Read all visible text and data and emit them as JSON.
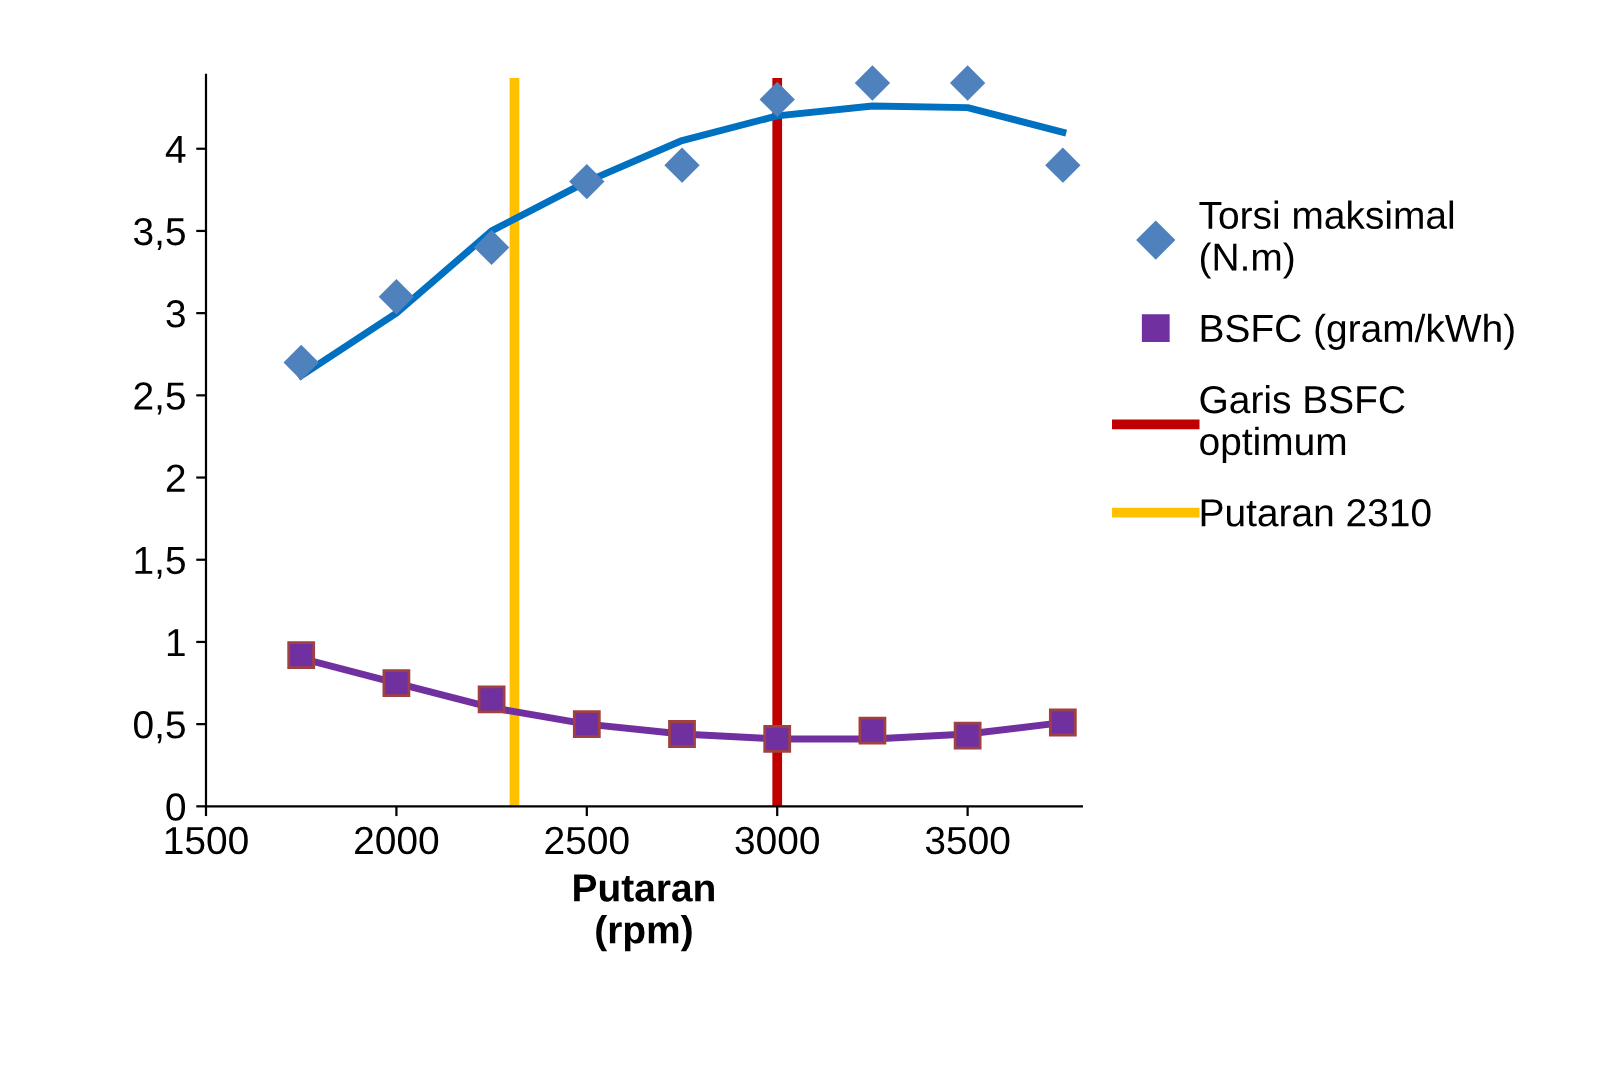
{
  "chart_data": {
    "type": "scatter",
    "xlabel": "Putaran\n(rpm)",
    "xlim": [
      1500,
      3800
    ],
    "xticks": [
      1500,
      2000,
      2500,
      3000,
      3500
    ],
    "ylim": [
      0,
      4.45
    ],
    "yticks": [
      0,
      {
        "value": 0.5,
        "label": "0,5"
      },
      1,
      {
        "value": 1.5,
        "label": "1,5"
      },
      2,
      {
        "value": 2.5,
        "label": "2,5"
      },
      3,
      {
        "value": 3.5,
        "label": "3,5"
      },
      4
    ],
    "x": [
      1750,
      2000,
      2250,
      2500,
      2750,
      3000,
      3250,
      3500,
      3750
    ],
    "series": [
      {
        "name": "Torsi maksimal\n(N.m)",
        "color": "#4f81bd",
        "marker": "diamond",
        "values": [
          2.7,
          3.1,
          3.4,
          3.8,
          3.9,
          4.3,
          4.4,
          4.4,
          3.9
        ]
      },
      {
        "name": "BSFC (gram/kWh)",
        "color": "#7030a0",
        "marker": "square",
        "values": [
          0.92,
          0.75,
          0.65,
          0.5,
          0.44,
          0.41,
          0.46,
          0.43,
          0.51
        ]
      },
      {
        "type": "line",
        "color": "#0070c0",
        "x": [
          1750,
          2000,
          2250,
          2500,
          2750,
          3000,
          3250,
          3500,
          3750
        ],
        "values": [
          2.62,
          3.0,
          3.5,
          3.8,
          4.05,
          4.2,
          4.26,
          4.25,
          4.1
        ]
      },
      {
        "type": "line",
        "color": "#7030a0",
        "x": [
          1750,
          2000,
          2250,
          2500,
          2750,
          3000,
          3250,
          3500,
          3750
        ],
        "values": [
          0.9,
          0.75,
          0.6,
          0.5,
          0.44,
          0.41,
          0.41,
          0.44,
          0.51
        ]
      },
      {
        "type": "line",
        "name": "Garis BSFC\noptimum",
        "color": "#c00000",
        "x": [
          3000,
          3000
        ],
        "values": [
          0,
          4.4
        ]
      },
      {
        "type": "line",
        "name": "Putaran 2310",
        "color": "#ffc000",
        "x": [
          2310,
          2310
        ],
        "values": [
          0,
          4.4
        ]
      }
    ],
    "grid": false,
    "legend": "right"
  }
}
